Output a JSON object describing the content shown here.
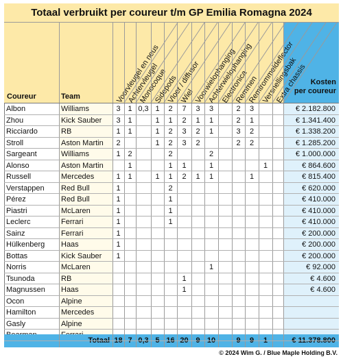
{
  "title": "Totaal verbruikt per coureur t/m GP Emilia Romagna 2024",
  "headers": {
    "driver": "Coureur",
    "team": "Team",
    "costs": [
      "Kosten",
      "per coureur"
    ],
    "parts": [
      "Voorvleugel en neus",
      "Achtervleugel",
      "Monocoque",
      "Sidepods",
      "Vloer / diffusor",
      "Wiel",
      "Voorwielophanging",
      "Achterwielophanging",
      "Electronica",
      "Remmen",
      "Remtrommeldeflector",
      "Versnellingsbak",
      "Extra chassis"
    ]
  },
  "rows": [
    {
      "driver": "Albon",
      "team": "Williams",
      "vals": [
        "3",
        "1",
        "0,3",
        "1",
        "2",
        "7",
        "3",
        "3",
        "",
        "2",
        "3",
        "",
        ""
      ],
      "cost": "€ 2.182.800"
    },
    {
      "driver": "Zhou",
      "team": "Kick Sauber",
      "vals": [
        "3",
        "1",
        "",
        "1",
        "1",
        "2",
        "1",
        "1",
        "",
        "2",
        "1",
        "",
        ""
      ],
      "cost": "€ 1.341.400"
    },
    {
      "driver": "Ricciardo",
      "team": "RB",
      "vals": [
        "1",
        "1",
        "",
        "1",
        "2",
        "3",
        "2",
        "1",
        "",
        "3",
        "2",
        "",
        ""
      ],
      "cost": "€ 1.338.200"
    },
    {
      "driver": "Stroll",
      "team": "Aston Martin",
      "vals": [
        "2",
        "",
        "",
        "1",
        "2",
        "3",
        "2",
        "",
        "",
        "2",
        "2",
        "",
        ""
      ],
      "cost": "€ 1.285.200"
    },
    {
      "driver": "Sargeant",
      "team": "Williams",
      "vals": [
        "1",
        "2",
        "",
        "",
        "2",
        "",
        "",
        "2",
        "",
        "",
        "",
        "",
        ""
      ],
      "cost": "€ 1.000.000"
    },
    {
      "driver": "Alonso",
      "team": "Aston Martin",
      "vals": [
        "",
        "1",
        "",
        "",
        "1",
        "1",
        "",
        "1",
        "",
        "",
        "",
        "1",
        ""
      ],
      "cost": "€ 864.600"
    },
    {
      "driver": "Russell",
      "team": "Mercedes",
      "vals": [
        "1",
        "1",
        "",
        "1",
        "1",
        "2",
        "1",
        "1",
        "",
        "",
        "1",
        "",
        ""
      ],
      "cost": "€ 815.400"
    },
    {
      "driver": "Verstappen",
      "team": "Red Bull",
      "vals": [
        "1",
        "",
        "",
        "",
        "2",
        "",
        "",
        "",
        "",
        "",
        "",
        "",
        ""
      ],
      "cost": "€ 620.000"
    },
    {
      "driver": "Pérez",
      "team": "Red Bull",
      "vals": [
        "1",
        "",
        "",
        "",
        "1",
        "",
        "",
        "",
        "",
        "",
        "",
        "",
        ""
      ],
      "cost": "€ 410.000"
    },
    {
      "driver": "Piastri",
      "team": "McLaren",
      "vals": [
        "1",
        "",
        "",
        "",
        "1",
        "",
        "",
        "",
        "",
        "",
        "",
        "",
        ""
      ],
      "cost": "€ 410.000"
    },
    {
      "driver": "Leclerc",
      "team": "Ferrari",
      "vals": [
        "1",
        "",
        "",
        "",
        "1",
        "",
        "",
        "",
        "",
        "",
        "",
        "",
        ""
      ],
      "cost": "€ 410.000"
    },
    {
      "driver": "Sainz",
      "team": "Ferrari",
      "vals": [
        "1",
        "",
        "",
        "",
        "",
        "",
        "",
        "",
        "",
        "",
        "",
        "",
        ""
      ],
      "cost": "€ 200.000"
    },
    {
      "driver": "Hülkenberg",
      "team": "Haas",
      "vals": [
        "1",
        "",
        "",
        "",
        "",
        "",
        "",
        "",
        "",
        "",
        "",
        "",
        ""
      ],
      "cost": "€ 200.000"
    },
    {
      "driver": "Bottas",
      "team": "Kick Sauber",
      "vals": [
        "1",
        "",
        "",
        "",
        "",
        "",
        "",
        "",
        "",
        "",
        "",
        "",
        ""
      ],
      "cost": "€ 200.000"
    },
    {
      "driver": "Norris",
      "team": "McLaren",
      "vals": [
        "",
        "",
        "",
        "",
        "",
        "",
        "",
        "1",
        "",
        "",
        "",
        "",
        ""
      ],
      "cost": "€ 92.000"
    },
    {
      "driver": "Tsunoda",
      "team": "RB",
      "vals": [
        "",
        "",
        "",
        "",
        "",
        "1",
        "",
        "",
        "",
        "",
        "",
        "",
        ""
      ],
      "cost": "€ 4.600"
    },
    {
      "driver": "Magnussen",
      "team": "Haas",
      "vals": [
        "",
        "",
        "",
        "",
        "",
        "1",
        "",
        "",
        "",
        "",
        "",
        "",
        ""
      ],
      "cost": "€ 4.600"
    },
    {
      "driver": "Ocon",
      "team": "Alpine",
      "vals": [
        "",
        "",
        "",
        "",
        "",
        "",
        "",
        "",
        "",
        "",
        "",
        "",
        ""
      ],
      "cost": ""
    },
    {
      "driver": "Hamilton",
      "team": "Mercedes",
      "vals": [
        "",
        "",
        "",
        "",
        "",
        "",
        "",
        "",
        "",
        "",
        "",
        "",
        ""
      ],
      "cost": ""
    },
    {
      "driver": "Gasly",
      "team": "Alpine",
      "vals": [
        "",
        "",
        "",
        "",
        "",
        "",
        "",
        "",
        "",
        "",
        "",
        "",
        ""
      ],
      "cost": ""
    },
    {
      "driver": "Bearman",
      "team": "Ferrari",
      "vals": [
        "",
        "",
        "",
        "",
        "",
        "",
        "",
        "",
        "",
        "",
        "",
        "",
        ""
      ],
      "cost": ""
    }
  ],
  "total": {
    "label": "Totaal",
    "vals": [
      "18",
      "7",
      "0,3",
      "5",
      "16",
      "20",
      "9",
      "10",
      "",
      "9",
      "9",
      "1",
      ""
    ],
    "cost": "€ 11.378.800"
  },
  "footer": "© 2024 Wim G. / Blue Maple Holding B.V.",
  "colors": {
    "header_bg": "#fde9a8",
    "accent_blue": "#4fb3e6",
    "cost_cell_bg": "#dff1fb",
    "team_cell_bg": "#fffbea"
  }
}
